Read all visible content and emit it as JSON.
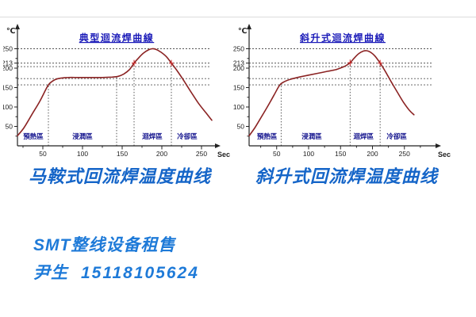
{
  "page": {
    "background": "#ffffff"
  },
  "colors": {
    "curve": "#8b2323",
    "chart_title": "#1a1ab8",
    "zone_label": "#10108c",
    "axis": "#222222",
    "gridline": "#555555",
    "cross_marker": "#cc2020",
    "caption_blue": "#1565c8",
    "contact_blue": "#1e7ad8"
  },
  "captions": [
    "马鞍式回流焊温度曲线",
    "斜升式回流焊温度曲线"
  ],
  "contact": {
    "line1": "SMT整线设备租售",
    "name": "尹生",
    "phone": "15118105624"
  },
  "chart_data": [
    {
      "type": "line",
      "title": "典型迴流焊曲線",
      "xlabel": "Sec",
      "ylabel": "℃",
      "xlim": [
        0,
        280
      ],
      "ylim": [
        0,
        300
      ],
      "x_ticks": [
        50,
        100,
        150,
        200,
        250
      ],
      "y_ticks": [
        50,
        100,
        150,
        200,
        213,
        250
      ],
      "grid": true,
      "grid_temps": [
        157,
        173,
        204,
        213,
        250
      ],
      "vlines": [
        {
          "x": 57,
          "top": 157
        },
        {
          "x": 143,
          "top": 178
        },
        {
          "x": 165,
          "top": 213
        },
        {
          "x": 212,
          "top": 213
        }
      ],
      "cross_markers": [
        [
          165,
          213
        ],
        [
          212,
          213
        ]
      ],
      "zones": [
        {
          "label": "預熱區",
          "x": 38
        },
        {
          "label": "浸潤區",
          "x": 100
        },
        {
          "label": "迴焊區",
          "x": 188
        },
        {
          "label": "冷卻區",
          "x": 232
        }
      ],
      "series": [
        {
          "name": "temperature-profile",
          "points": [
            [
              18,
              26
            ],
            [
              26,
              46
            ],
            [
              36,
              80
            ],
            [
              46,
              114
            ],
            [
              53,
              142
            ],
            [
              57,
              157
            ],
            [
              61,
              165
            ],
            [
              66,
              171
            ],
            [
              72,
              174
            ],
            [
              82,
              176
            ],
            [
              95,
              176
            ],
            [
              110,
              176
            ],
            [
              125,
              176
            ],
            [
              137,
              177
            ],
            [
              145,
              179
            ],
            [
              152,
              185
            ],
            [
              159,
              196
            ],
            [
              165,
              213
            ],
            [
              171,
              227
            ],
            [
              177,
              239
            ],
            [
              183,
              247
            ],
            [
              188,
              250
            ],
            [
              193,
              248
            ],
            [
              199,
              241
            ],
            [
              206,
              229
            ],
            [
              212,
              213
            ],
            [
              219,
              194
            ],
            [
              227,
              170
            ],
            [
              236,
              141
            ],
            [
              246,
              110
            ],
            [
              256,
              84
            ],
            [
              263,
              66
            ]
          ]
        }
      ]
    },
    {
      "type": "line",
      "title": "斜升式迴流焊曲線",
      "xlabel": "Sec",
      "ylabel": "℃",
      "xlim": [
        0,
        280
      ],
      "ylim": [
        0,
        300
      ],
      "x_ticks": [
        50,
        100,
        150,
        200,
        250
      ],
      "y_ticks": [
        50,
        100,
        150,
        200,
        213,
        250
      ],
      "grid": true,
      "grid_temps": [
        157,
        173,
        204,
        213,
        250
      ],
      "vlines": [
        {
          "x": 57,
          "top": 157
        },
        {
          "x": 165,
          "top": 214
        },
        {
          "x": 212,
          "top": 213
        }
      ],
      "cross_markers": [
        [
          165,
          214
        ],
        [
          212,
          213
        ]
      ],
      "zones": [
        {
          "label": "預熱區",
          "x": 35
        },
        {
          "label": "浸潤區",
          "x": 105
        },
        {
          "label": "迴焊區",
          "x": 186
        },
        {
          "label": "冷卻區",
          "x": 238
        }
      ],
      "series": [
        {
          "name": "temperature-profile",
          "points": [
            [
              7,
              26
            ],
            [
              16,
              47
            ],
            [
              26,
              74
            ],
            [
              36,
              102
            ],
            [
              46,
              131
            ],
            [
              55,
              157
            ],
            [
              63,
              166
            ],
            [
              73,
              172
            ],
            [
              85,
              177
            ],
            [
              100,
              182
            ],
            [
              115,
              187
            ],
            [
              130,
              192
            ],
            [
              142,
              196
            ],
            [
              151,
              201
            ],
            [
              158,
              206
            ],
            [
              165,
              214
            ],
            [
              172,
              227
            ],
            [
              179,
              238
            ],
            [
              186,
              244
            ],
            [
              191,
              245
            ],
            [
              197,
              241
            ],
            [
              204,
              231
            ],
            [
              212,
              213
            ],
            [
              220,
              192
            ],
            [
              229,
              166
            ],
            [
              239,
              138
            ],
            [
              249,
              111
            ],
            [
              258,
              91
            ],
            [
              265,
              80
            ]
          ]
        }
      ]
    }
  ]
}
